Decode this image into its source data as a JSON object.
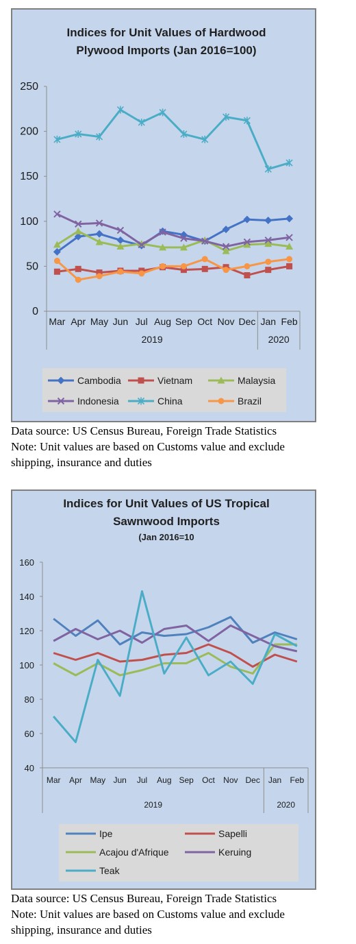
{
  "chart_data": [
    {
      "type": "line",
      "title": "Indices for Unit Values of Hardwood Plywood Imports (Jan 2016=100)",
      "title_lines": [
        "Indices for Unit Values of Hardwood",
        "Plywood Imports (Jan 2016=100)"
      ],
      "categories": [
        "Mar",
        "Apr",
        "May",
        "Jun",
        "Jul",
        "Aug",
        "Sep",
        "Oct",
        "Nov",
        "Dec",
        "Jan",
        "Feb"
      ],
      "year_groups": [
        {
          "label": "2019",
          "count": 10
        },
        {
          "label": "2020",
          "count": 2
        }
      ],
      "ylim": [
        0,
        250
      ],
      "yticks": [
        0,
        50,
        100,
        150,
        200,
        250
      ],
      "grid": false,
      "legend_position": "bottom",
      "series": [
        {
          "name": "Cambodia",
          "color": "#4472c4",
          "marker": "diamond",
          "values": [
            66,
            83,
            86,
            79,
            73,
            89,
            85,
            78,
            91,
            102,
            101,
            103
          ]
        },
        {
          "name": "Vietnam",
          "color": "#c0504d",
          "marker": "square",
          "values": [
            44,
            47,
            43,
            45,
            45,
            49,
            46,
            47,
            49,
            40,
            46,
            50
          ]
        },
        {
          "name": "Malaysia",
          "color": "#9bbb59",
          "marker": "triangle",
          "values": [
            74,
            89,
            77,
            72,
            75,
            71,
            71,
            79,
            67,
            74,
            75,
            72
          ]
        },
        {
          "name": "Indonesia",
          "color": "#8064a2",
          "marker": "x",
          "values": [
            108,
            97,
            98,
            90,
            74,
            88,
            81,
            78,
            72,
            77,
            79,
            82
          ]
        },
        {
          "name": "China",
          "color": "#4bacc6",
          "marker": "star",
          "values": [
            191,
            197,
            194,
            224,
            210,
            221,
            197,
            191,
            216,
            212,
            158,
            165
          ]
        },
        {
          "name": "Brazil",
          "color": "#f79646",
          "marker": "circle",
          "values": [
            56,
            35,
            39,
            44,
            42,
            50,
            50,
            58,
            46,
            50,
            55,
            58
          ]
        }
      ]
    },
    {
      "type": "line",
      "title": "Indices for Unit Values of US Tropical Sawnwood Imports (Jan 2016=10",
      "title_lines": [
        "Indices for Unit Values of US Tropical",
        "Sawnwood Imports"
      ],
      "subtitle": "(Jan 2016=10",
      "categories": [
        "Mar",
        "Apr",
        "May",
        "Jun",
        "Jul",
        "Aug",
        "Sep",
        "Oct",
        "Nov",
        "Dec",
        "Jan",
        "Feb"
      ],
      "year_groups": [
        {
          "label": "2019",
          "count": 10
        },
        {
          "label": "2020",
          "count": 2
        }
      ],
      "ylim": [
        40,
        160
      ],
      "yticks": [
        40,
        60,
        80,
        100,
        120,
        140,
        160
      ],
      "grid": false,
      "legend_position": "bottom",
      "series": [
        {
          "name": "Ipe",
          "color": "#4f81bd",
          "values": [
            127,
            117,
            126,
            112,
            119,
            117,
            118,
            122,
            128,
            113,
            119,
            115
          ]
        },
        {
          "name": "Sapelli",
          "color": "#c0504d",
          "values": [
            107,
            103,
            107,
            102,
            103,
            106,
            107,
            112,
            107,
            99,
            106,
            102
          ]
        },
        {
          "name": "Acajou d'Afrique",
          "color": "#9bbb59",
          "values": [
            101,
            94,
            101,
            94,
            97,
            101,
            101,
            107,
            99,
            95,
            112,
            112
          ]
        },
        {
          "name": "Keruing",
          "color": "#8064a2",
          "values": [
            114,
            121,
            115,
            120,
            113,
            121,
            123,
            114,
            123,
            117,
            111,
            108
          ]
        },
        {
          "name": "Teak",
          "color": "#4bacc6",
          "values": [
            70,
            55,
            103,
            82,
            143,
            95,
            116,
            94,
            102,
            89,
            118,
            111
          ]
        }
      ]
    }
  ],
  "captions": [
    {
      "source": "Data source: US Census Bureau, Foreign Trade Statistics",
      "note_line1": "Note: Unit values are based on Customs value and exclude",
      "note_line2": "shipping, insurance and duties"
    },
    {
      "source": "Data source: US Census Bureau, Foreign Trade Statistics",
      "note_line1": "Note: Unit values are based on Customs value and exclude",
      "note_line2": "shipping, insurance and duties"
    }
  ]
}
